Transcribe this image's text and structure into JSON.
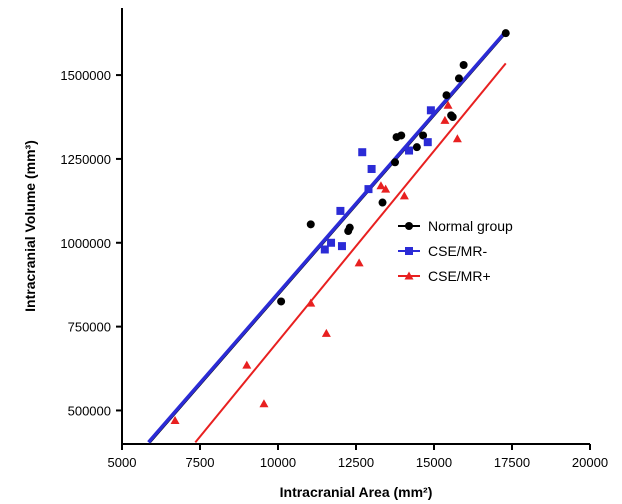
{
  "chart_data": {
    "type": "scatter",
    "xlabel": "Intracranial Area (mm²)",
    "ylabel": "Intracranial Volume (mm³)",
    "xlim": [
      5000,
      20000
    ],
    "ylim": [
      400000,
      1700000
    ],
    "x_ticks": [
      "5000",
      "7500",
      "10000",
      "12500",
      "15000",
      "17500",
      "20000"
    ],
    "y_ticks": [
      "500000",
      "750000",
      "1000000",
      "1250000",
      "1500000"
    ],
    "x_tick_values": [
      5000,
      7500,
      10000,
      12500,
      15000,
      17500,
      20000
    ],
    "y_tick_values": [
      500000,
      750000,
      1000000,
      1250000,
      1500000
    ],
    "legend_position": "right",
    "series": [
      {
        "name": "Normal group",
        "color": "#000000",
        "marker": "circle",
        "points": [
          [
            10100,
            825000
          ],
          [
            11050,
            1055000
          ],
          [
            12250,
            1035000
          ],
          [
            12300,
            1045000
          ],
          [
            13350,
            1120000
          ],
          [
            13750,
            1240000
          ],
          [
            13800,
            1315000
          ],
          [
            13950,
            1320000
          ],
          [
            14200,
            1275000
          ],
          [
            14450,
            1285000
          ],
          [
            14650,
            1320000
          ],
          [
            15400,
            1440000
          ],
          [
            15550,
            1380000
          ],
          [
            15600,
            1375000
          ],
          [
            15800,
            1490000
          ],
          [
            15950,
            1530000
          ],
          [
            17300,
            1625000
          ]
        ],
        "fit": [
          [
            5900,
            405000
          ],
          [
            17300,
            1625000
          ]
        ]
      },
      {
        "name": "CSE/MR-",
        "color": "#2b2bd6",
        "marker": "square",
        "points": [
          [
            11500,
            980000
          ],
          [
            11700,
            1000000
          ],
          [
            12000,
            1095000
          ],
          [
            12050,
            990000
          ],
          [
            12700,
            1270000
          ],
          [
            12900,
            1160000
          ],
          [
            13000,
            1220000
          ],
          [
            14200,
            1275000
          ],
          [
            14800,
            1300000
          ],
          [
            14900,
            1395000
          ]
        ],
        "fit": [
          [
            5850,
            405000
          ],
          [
            17300,
            1630000
          ]
        ]
      },
      {
        "name": "CSE/MR+",
        "color": "#e82020",
        "marker": "triangle",
        "points": [
          [
            6700,
            470000
          ],
          [
            9000,
            635000
          ],
          [
            9550,
            520000
          ],
          [
            11050,
            820000
          ],
          [
            11550,
            730000
          ],
          [
            12600,
            940000
          ],
          [
            13300,
            1170000
          ],
          [
            13450,
            1160000
          ],
          [
            14050,
            1140000
          ],
          [
            15350,
            1365000
          ],
          [
            15450,
            1410000
          ],
          [
            15750,
            1310000
          ]
        ],
        "fit": [
          [
            7350,
            405000
          ],
          [
            17300,
            1535000
          ]
        ]
      }
    ]
  }
}
